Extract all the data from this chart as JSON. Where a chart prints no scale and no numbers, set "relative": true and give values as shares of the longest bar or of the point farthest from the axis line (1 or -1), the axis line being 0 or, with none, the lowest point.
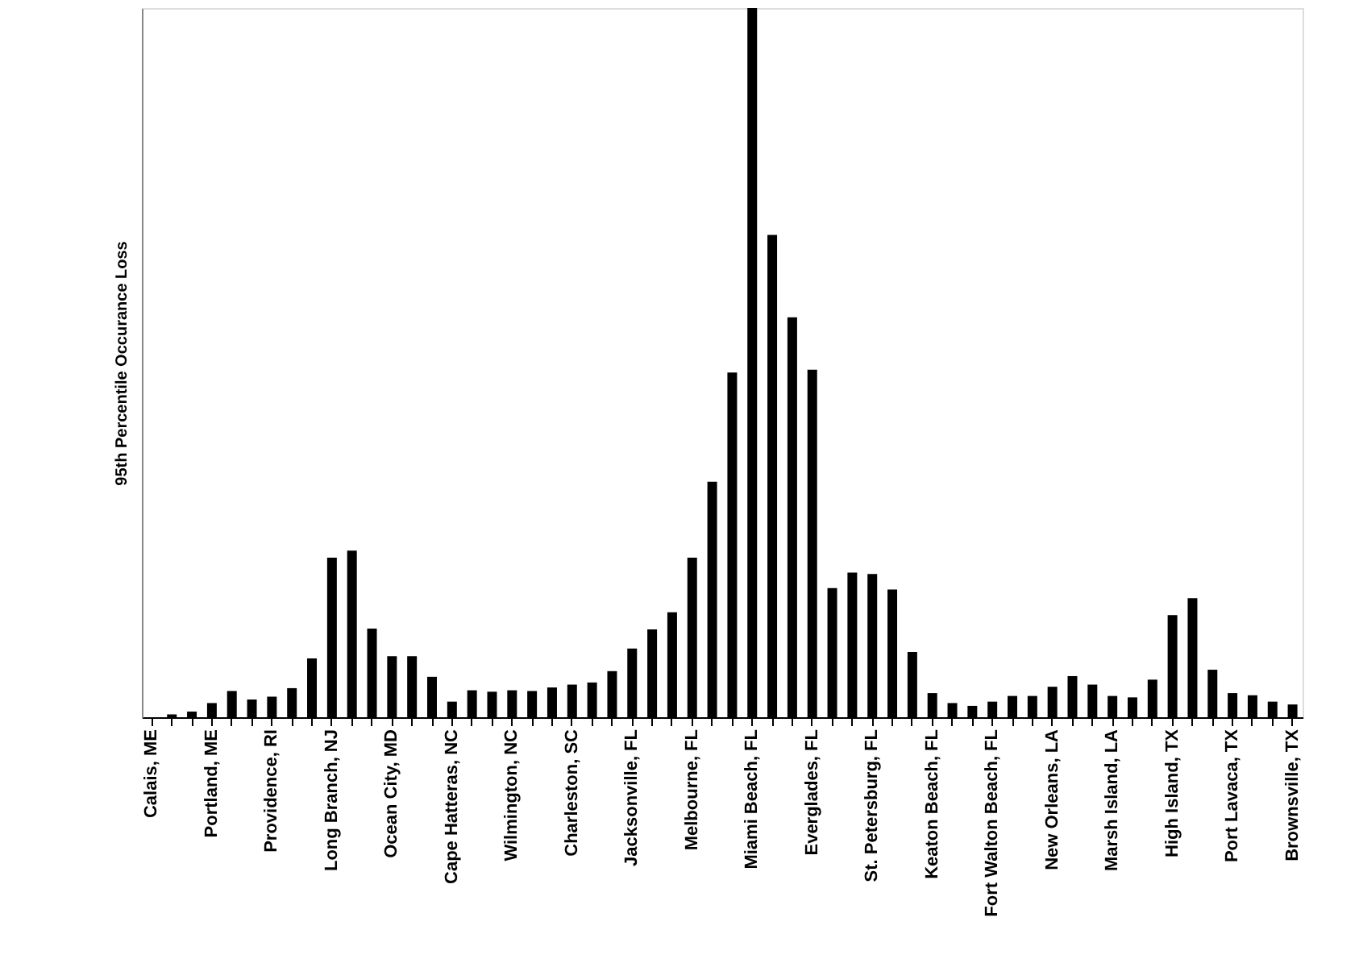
{
  "chart_data": {
    "type": "bar",
    "relative": true,
    "ylabel": "95th Percentile Occurance Loss",
    "categories": [
      "Calais, ME",
      null,
      null,
      "Portland, ME",
      null,
      null,
      "Providence, RI",
      null,
      null,
      "Long Branch, NJ",
      null,
      null,
      "Ocean City, MD",
      null,
      null,
      "Cape Hatteras, NC",
      null,
      null,
      "Wilmington, NC",
      null,
      null,
      "Charleston, SC",
      null,
      null,
      "Jacksonville, FL",
      null,
      null,
      "Melbourne, FL",
      null,
      null,
      "Miami Beach, FL",
      null,
      null,
      "Everglades, FL",
      null,
      null,
      "St. Petersburg, FL",
      null,
      null,
      "Keaton Beach, FL",
      null,
      null,
      "Fort Walton Beach, FL",
      null,
      null,
      "New Orleans, LA",
      null,
      null,
      "Marsh Island, LA",
      null,
      null,
      "High Island, TX",
      null,
      null,
      "Port Lavaca, TX",
      null,
      null,
      "Brownsville, TX"
    ],
    "values": [
      0,
      0.004,
      0.008,
      0.02,
      0.037,
      0.025,
      0.029,
      0.041,
      0.083,
      0.225,
      0.235,
      0.125,
      0.086,
      0.086,
      0.057,
      0.022,
      0.038,
      0.036,
      0.038,
      0.037,
      0.042,
      0.046,
      0.049,
      0.065,
      0.097,
      0.124,
      0.148,
      0.225,
      0.332,
      0.486,
      1.0,
      0.68,
      0.564,
      0.49,
      0.182,
      0.204,
      0.202,
      0.18,
      0.092,
      0.034,
      0.02,
      0.016,
      0.022,
      0.03,
      0.03,
      0.043,
      0.058,
      0.046,
      0.03,
      0.028,
      0.053,
      0.144,
      0.168,
      0.067,
      0.034,
      0.031,
      0.022,
      0.018
    ],
    "color": "#000000",
    "grid": false
  }
}
